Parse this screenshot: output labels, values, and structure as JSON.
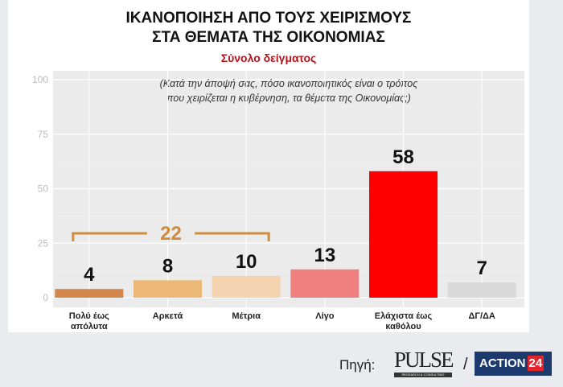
{
  "chart_data": {
    "type": "bar",
    "title": [
      "ΙΚΑΝΟΠΟΙΗΣΗ ΑΠΟ ΤΟΥΣ ΧΕΙΡΙΣΜΟΥΣ",
      "ΣΤΑ ΘΕΜΑΤΑ ΤΗΣ ΟΙΚΟΝΟΜΙΑΣ"
    ],
    "subtitle": "Σύνολο δείγματος",
    "annotation": [
      "(Κατά την άποψή σας, πόσο ικανοποιητικός είναι ο τρόπος",
      "που χειρίζεται η κυβέρνηση, τα θέματα της Οικονομίας;)"
    ],
    "categories": [
      [
        "Πολύ έως",
        "απόλυτα"
      ],
      [
        "Αρκετά"
      ],
      [
        "Μέτρια"
      ],
      [
        "Λίγο"
      ],
      [
        "Ελάχιστα έως",
        "καθόλου"
      ],
      [
        "ΔΓ/ΔΑ"
      ]
    ],
    "values": [
      4,
      8,
      10,
      13,
      58,
      7
    ],
    "colors": [
      "#d4874a",
      "#ebb877",
      "#f3d3b0",
      "#f08080",
      "#ff0000",
      "#d9d9d9"
    ],
    "bracket": {
      "label": "22",
      "spans": [
        0,
        2
      ],
      "color": "#d08c3a"
    },
    "yticks": [
      0,
      25,
      50,
      75,
      100
    ],
    "ylim": [
      0,
      100
    ],
    "grid": true
  },
  "source": {
    "label": "Πηγή:",
    "logos": [
      "PULSE",
      "RESEARCH & CONSULTING",
      "ACTION",
      "24"
    ],
    "separator": "/"
  }
}
